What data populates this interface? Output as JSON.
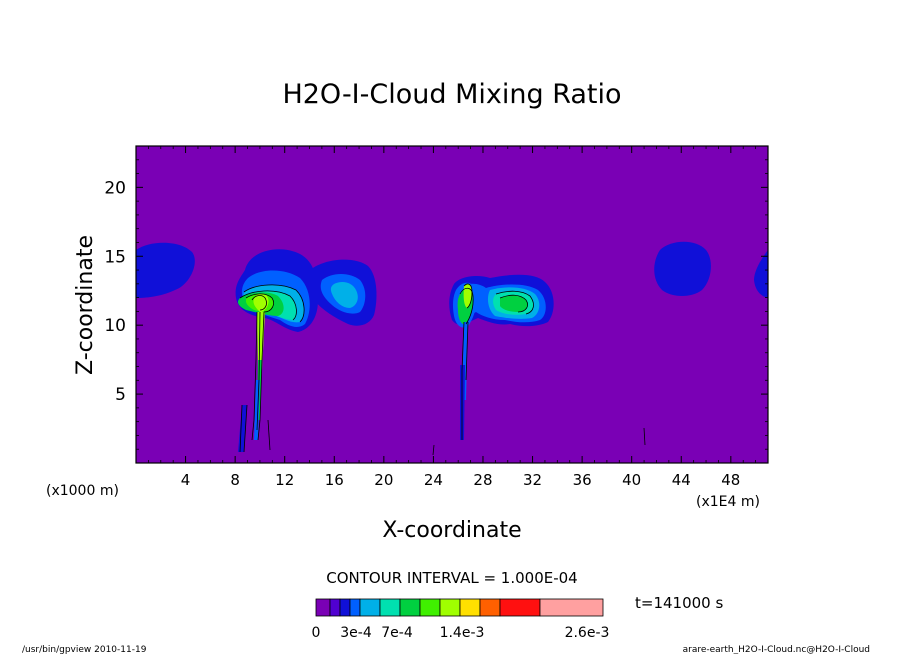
{
  "chart_data": {
    "type": "contour",
    "title": "H2O-I-Cloud Mixing Ratio",
    "xlabel": "X-coordinate",
    "ylabel": "Z-coordinate",
    "x_unit_left": "(x1000 m)",
    "x_unit_right": "(x1E4 m)",
    "xlim": [
      0,
      51
    ],
    "ylim": [
      0,
      23
    ],
    "x_ticks": [
      4,
      8,
      12,
      16,
      20,
      24,
      28,
      32,
      36,
      40,
      44,
      48
    ],
    "y_ticks": [
      5,
      10,
      15,
      20
    ],
    "contour_interval_text": "CONTOUR INTERVAL = 1.000E-04",
    "time_text": "t=141000 s",
    "colorbar": {
      "colors": [
        "#7a00b5",
        "#5000d0",
        "#1010d8",
        "#0060ff",
        "#00b0e8",
        "#00e0b0",
        "#00d040",
        "#40f000",
        "#a0ff00",
        "#ffe000",
        "#ff6000",
        "#ff1010",
        "#ffa0a0"
      ],
      "tick_labels": [
        "0",
        "3e-4",
        "7e-4",
        "1.4e-3",
        "2.6e-3"
      ]
    },
    "cloud_regions": [
      {
        "x_range": [
          0,
          4.8
        ],
        "z_range": [
          12,
          15.8
        ],
        "max_level": "3e-4"
      },
      {
        "x_range": [
          8.5,
          14.5
        ],
        "z_range": [
          9.6,
          15.5
        ],
        "max_level": "1.4e-3"
      },
      {
        "x_range": [
          14,
          19.8
        ],
        "z_range": [
          10,
          14.8
        ],
        "max_level": "7e-4"
      },
      {
        "x_range": [
          25.8,
          27.8
        ],
        "z_range": [
          1.5,
          13.3
        ],
        "max_level": "1.4e-3"
      },
      {
        "x_range": [
          27.8,
          34
        ],
        "z_range": [
          9.9,
          13.6
        ],
        "max_level": "7e-4"
      },
      {
        "x_range": [
          42,
          46.5
        ],
        "z_range": [
          12.2,
          16
        ],
        "max_level": "3e-4"
      },
      {
        "x_range": [
          49.5,
          51
        ],
        "z_range": [
          11.6,
          15.4
        ],
        "max_level": "3e-4"
      }
    ]
  },
  "footer": {
    "left": "/usr/bin/gpview  2010-11-19",
    "right": "arare-earth_H2O-I-Cloud.nc@H2O-I-Cloud"
  }
}
